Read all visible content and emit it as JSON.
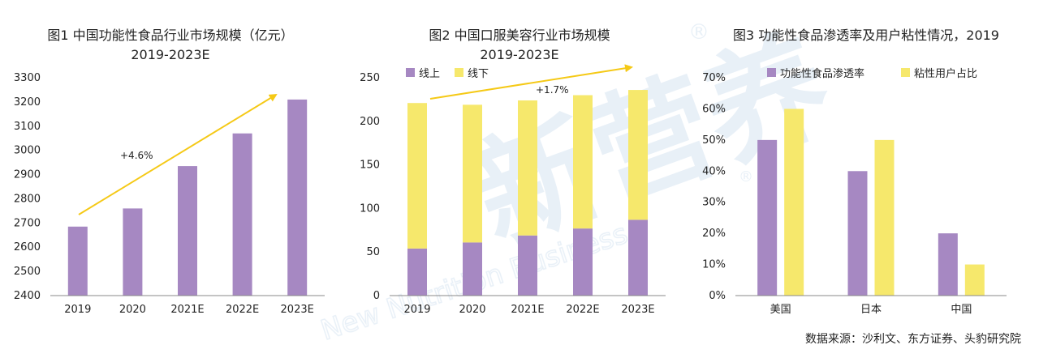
{
  "source": "数据来源：沙利文、东方证券、头豹研究院",
  "watermark": {
    "logo_text": "新营养",
    "sub_text": "New Nutrition Business",
    "mark": "®"
  },
  "colors": {
    "purple": "#a688c2",
    "yellow": "#f6e86c",
    "arrow": "#f5c916",
    "axis": "#888888",
    "watermark": "#d6e4f1"
  },
  "chart_data": [
    {
      "type": "bar",
      "title": "图1 中国功能性食品行业市场规模（亿元）",
      "subtitle": "2019-2023E",
      "categories": [
        "2019",
        "2020",
        "2021E",
        "2022E",
        "2023E"
      ],
      "values": [
        2685,
        2760,
        2935,
        3070,
        3210
      ],
      "ylim": [
        2400,
        3300
      ],
      "yticks": [
        "2400",
        "2500",
        "2600",
        "2700",
        "2800",
        "2900",
        "3000",
        "3100",
        "3200",
        "3300"
      ],
      "annotation": "+4.6%"
    },
    {
      "type": "bar",
      "stacked": true,
      "title": "图2 中国口服美容行业市场规模",
      "subtitle": "2019-2023E",
      "categories": [
        "2019",
        "2020",
        "2021E",
        "2022E",
        "2023E"
      ],
      "series": [
        {
          "name": "线上",
          "values": [
            54,
            61,
            69,
            77,
            87
          ]
        },
        {
          "name": "线下",
          "values": [
            167,
            158,
            155,
            153,
            149
          ]
        }
      ],
      "ylim": [
        0,
        250
      ],
      "yticks": [
        "0",
        "50",
        "100",
        "150",
        "200",
        "250"
      ],
      "annotation": "+1.7%"
    },
    {
      "type": "bar",
      "title": "图3 功能性食品渗透率及用户粘性情况，2019",
      "categories": [
        "美国",
        "日本",
        "中国"
      ],
      "series": [
        {
          "name": "功能性食品渗透率",
          "values": [
            50,
            40,
            20
          ]
        },
        {
          "name": "粘性用户占比",
          "values": [
            60,
            50,
            10
          ]
        }
      ],
      "ylim": [
        0,
        70
      ],
      "yticks": [
        "0%",
        "10%",
        "20%",
        "30%",
        "40%",
        "50%",
        "60%",
        "70%"
      ]
    }
  ]
}
